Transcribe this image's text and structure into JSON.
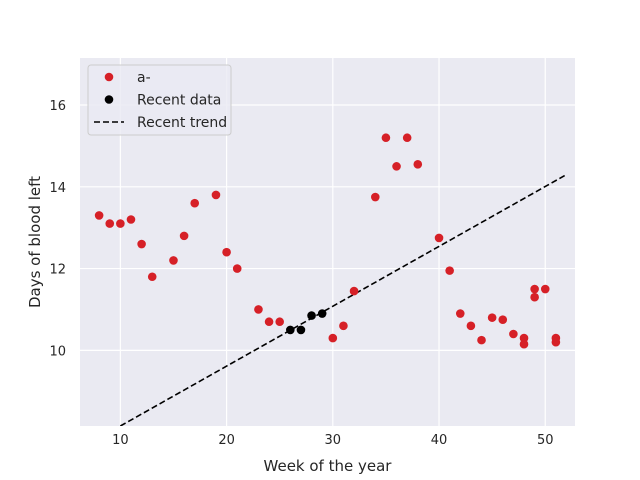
{
  "chart_data": {
    "type": "scatter",
    "xlabel": "Week of the year",
    "ylabel": "Days of blood left",
    "xlim": [
      6.2,
      52.8
    ],
    "ylim": [
      8.15,
      17.15
    ],
    "xticks": [
      10,
      20,
      30,
      40,
      50
    ],
    "yticks": [
      10,
      12,
      14,
      16
    ],
    "grid": true,
    "legend_position": "top-left",
    "series": [
      {
        "name": "a-",
        "kind": "scatter",
        "color": "#d62027",
        "points": [
          [
            8,
            13.3
          ],
          [
            9,
            13.1
          ],
          [
            10,
            13.1
          ],
          [
            11,
            13.2
          ],
          [
            12,
            12.6
          ],
          [
            13,
            11.8
          ],
          [
            15,
            12.2
          ],
          [
            16,
            12.8
          ],
          [
            17,
            13.6
          ],
          [
            19,
            13.8
          ],
          [
            20,
            12.4
          ],
          [
            21,
            12.0
          ],
          [
            23,
            11.0
          ],
          [
            24,
            10.7
          ],
          [
            25,
            10.7
          ],
          [
            30,
            10.3
          ],
          [
            31,
            10.6
          ],
          [
            32,
            11.45
          ],
          [
            34,
            13.75
          ],
          [
            35,
            15.2
          ],
          [
            36,
            14.5
          ],
          [
            37,
            15.2
          ],
          [
            38,
            14.55
          ],
          [
            40,
            12.75
          ],
          [
            41,
            11.95
          ],
          [
            42,
            10.9
          ],
          [
            43,
            10.6
          ],
          [
            44,
            10.25
          ],
          [
            45,
            10.8
          ],
          [
            46,
            10.75
          ],
          [
            47,
            10.4
          ],
          [
            48,
            10.3
          ],
          [
            48,
            10.15
          ],
          [
            49,
            11.5
          ],
          [
            49,
            11.3
          ],
          [
            50,
            11.5
          ],
          [
            51,
            10.3
          ],
          [
            51,
            10.2
          ]
        ]
      },
      {
        "name": "Recent data",
        "kind": "scatter",
        "color": "#000000",
        "points": [
          [
            26,
            10.5
          ],
          [
            27,
            10.5
          ],
          [
            28,
            10.85
          ],
          [
            29,
            10.9
          ]
        ]
      },
      {
        "name": "Recent trend",
        "kind": "line",
        "color": "#000000",
        "dashed": true,
        "points": [
          [
            10,
            8.15
          ],
          [
            52,
            14.3
          ]
        ]
      }
    ]
  }
}
